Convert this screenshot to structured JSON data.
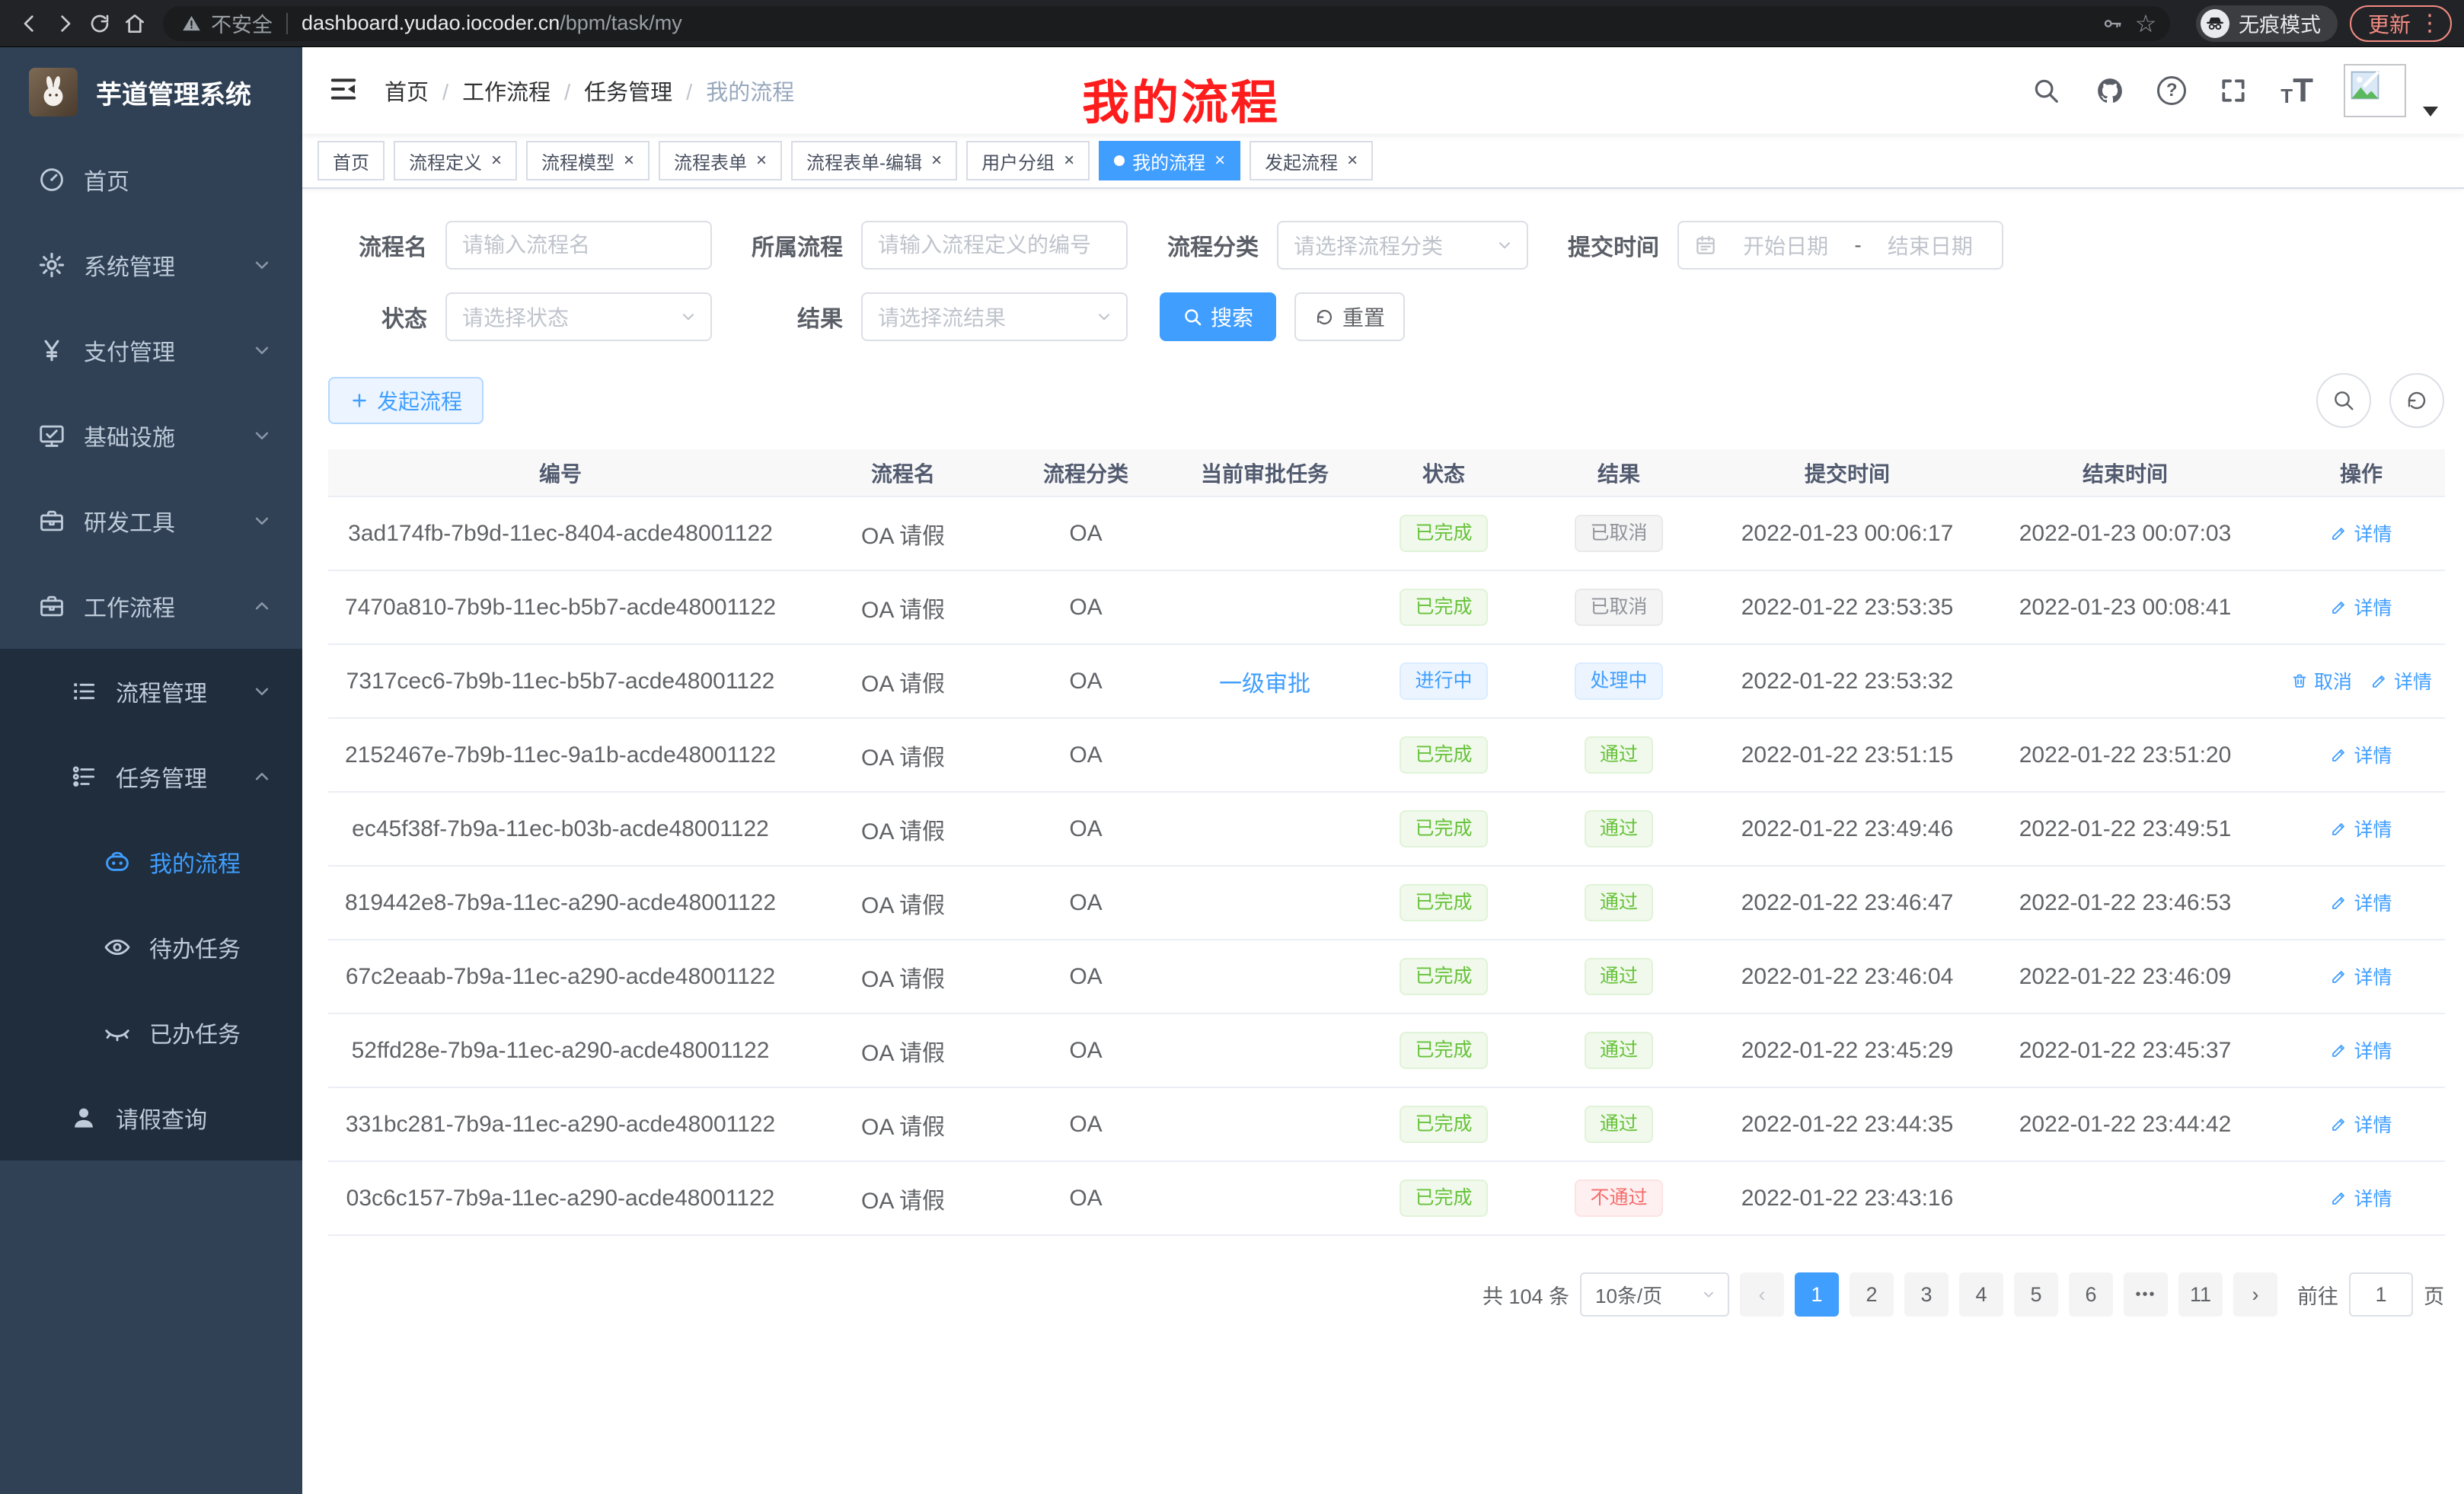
{
  "browser": {
    "security_warning": "不安全",
    "url_domain": "dashboard.yudao.iocoder.cn",
    "url_path": "/bpm/task/my",
    "incognito_label": "无痕模式",
    "update_label": "更新"
  },
  "sidebar": {
    "logo_title": "芋道管理系统",
    "items": [
      {
        "key": "home",
        "label": "首页",
        "icon": "gauge",
        "level": 1,
        "dark": false,
        "active": false,
        "chevron": ""
      },
      {
        "key": "system",
        "label": "系统管理",
        "icon": "gear",
        "level": 1,
        "dark": false,
        "active": false,
        "chevron": "down"
      },
      {
        "key": "payment",
        "label": "支付管理",
        "icon": "yen",
        "level": 1,
        "dark": false,
        "active": false,
        "chevron": "down"
      },
      {
        "key": "infra",
        "label": "基础设施",
        "icon": "monitor",
        "level": 1,
        "dark": false,
        "active": false,
        "chevron": "down"
      },
      {
        "key": "devtools",
        "label": "研发工具",
        "icon": "briefcase",
        "level": 1,
        "dark": false,
        "active": false,
        "chevron": "down"
      },
      {
        "key": "workflow",
        "label": "工作流程",
        "icon": "briefcase",
        "level": 1,
        "dark": false,
        "active": false,
        "chevron": "up"
      },
      {
        "key": "process-mgmt",
        "label": "流程管理",
        "icon": "tree-list",
        "level": 2,
        "dark": true,
        "active": false,
        "chevron": "down"
      },
      {
        "key": "task-mgmt",
        "label": "任务管理",
        "icon": "flow",
        "level": 2,
        "dark": true,
        "active": false,
        "chevron": "up"
      },
      {
        "key": "my-process",
        "label": "我的流程",
        "icon": "robot",
        "level": 3,
        "dark": true,
        "active": true,
        "chevron": ""
      },
      {
        "key": "todo-tasks",
        "label": "待办任务",
        "icon": "eye",
        "level": 3,
        "dark": true,
        "active": false,
        "chevron": ""
      },
      {
        "key": "done-tasks",
        "label": "已办任务",
        "icon": "eye-closed",
        "level": 3,
        "dark": true,
        "active": false,
        "chevron": ""
      },
      {
        "key": "leave-query",
        "label": "请假查询",
        "icon": "user",
        "level": 2,
        "dark": true,
        "active": false,
        "chevron": ""
      }
    ]
  },
  "header": {
    "breadcrumb": [
      "首页",
      "工作流程",
      "任务管理",
      "我的流程"
    ],
    "annotation": "我的流程"
  },
  "tabs": [
    {
      "label": "首页",
      "closable": false,
      "active": false
    },
    {
      "label": "流程定义",
      "closable": true,
      "active": false
    },
    {
      "label": "流程模型",
      "closable": true,
      "active": false
    },
    {
      "label": "流程表单",
      "closable": true,
      "active": false
    },
    {
      "label": "流程表单-编辑",
      "closable": true,
      "active": false
    },
    {
      "label": "用户分组",
      "closable": true,
      "active": false
    },
    {
      "label": "我的流程",
      "closable": true,
      "active": true
    },
    {
      "label": "发起流程",
      "closable": true,
      "active": false
    }
  ],
  "filters": {
    "process_name": {
      "label": "流程名",
      "placeholder": "请输入流程名"
    },
    "process_def": {
      "label": "所属流程",
      "placeholder": "请输入流程定义的编号"
    },
    "category": {
      "label": "流程分类",
      "placeholder": "请选择流程分类"
    },
    "submit_time": {
      "label": "提交时间",
      "start_placeholder": "开始日期",
      "separator": "-",
      "end_placeholder": "结束日期"
    },
    "status": {
      "label": "状态",
      "placeholder": "请选择状态"
    },
    "result": {
      "label": "结果",
      "placeholder": "请选择流结果"
    },
    "search_button": "搜索",
    "reset_button": "重置"
  },
  "toolbar": {
    "start_process_button": "发起流程"
  },
  "table": {
    "columns": [
      "编号",
      "流程名",
      "流程分类",
      "当前审批任务",
      "状态",
      "结果",
      "提交时间",
      "结束时间",
      "操作"
    ],
    "action_labels": {
      "detail": "详情",
      "cancel": "取消"
    },
    "rows": [
      {
        "id": "3ad174fb-7b9d-11ec-8404-acde48001122",
        "name": "OA 请假",
        "category": "OA",
        "task": "",
        "status": {
          "label": "已完成",
          "type": "success"
        },
        "result": {
          "label": "已取消",
          "type": "info"
        },
        "submit_time": "2022-01-23 00:06:17",
        "end_time": "2022-01-23 00:07:03",
        "actions": [
          "detail"
        ]
      },
      {
        "id": "7470a810-7b9b-11ec-b5b7-acde48001122",
        "name": "OA 请假",
        "category": "OA",
        "task": "",
        "status": {
          "label": "已完成",
          "type": "success"
        },
        "result": {
          "label": "已取消",
          "type": "info"
        },
        "submit_time": "2022-01-22 23:53:35",
        "end_time": "2022-01-23 00:08:41",
        "actions": [
          "detail"
        ]
      },
      {
        "id": "7317cec6-7b9b-11ec-b5b7-acde48001122",
        "name": "OA 请假",
        "category": "OA",
        "task": "一级审批",
        "status": {
          "label": "进行中",
          "type": "primary"
        },
        "result": {
          "label": "处理中",
          "type": "primary"
        },
        "submit_time": "2022-01-22 23:53:32",
        "end_time": "",
        "actions": [
          "cancel",
          "detail"
        ]
      },
      {
        "id": "2152467e-7b9b-11ec-9a1b-acde48001122",
        "name": "OA 请假",
        "category": "OA",
        "task": "",
        "status": {
          "label": "已完成",
          "type": "success"
        },
        "result": {
          "label": "通过",
          "type": "success"
        },
        "submit_time": "2022-01-22 23:51:15",
        "end_time": "2022-01-22 23:51:20",
        "actions": [
          "detail"
        ]
      },
      {
        "id": "ec45f38f-7b9a-11ec-b03b-acde48001122",
        "name": "OA 请假",
        "category": "OA",
        "task": "",
        "status": {
          "label": "已完成",
          "type": "success"
        },
        "result": {
          "label": "通过",
          "type": "success"
        },
        "submit_time": "2022-01-22 23:49:46",
        "end_time": "2022-01-22 23:49:51",
        "actions": [
          "detail"
        ]
      },
      {
        "id": "819442e8-7b9a-11ec-a290-acde48001122",
        "name": "OA 请假",
        "category": "OA",
        "task": "",
        "status": {
          "label": "已完成",
          "type": "success"
        },
        "result": {
          "label": "通过",
          "type": "success"
        },
        "submit_time": "2022-01-22 23:46:47",
        "end_time": "2022-01-22 23:46:53",
        "actions": [
          "detail"
        ]
      },
      {
        "id": "67c2eaab-7b9a-11ec-a290-acde48001122",
        "name": "OA 请假",
        "category": "OA",
        "task": "",
        "status": {
          "label": "已完成",
          "type": "success"
        },
        "result": {
          "label": "通过",
          "type": "success"
        },
        "submit_time": "2022-01-22 23:46:04",
        "end_time": "2022-01-22 23:46:09",
        "actions": [
          "detail"
        ]
      },
      {
        "id": "52ffd28e-7b9a-11ec-a290-acde48001122",
        "name": "OA 请假",
        "category": "OA",
        "task": "",
        "status": {
          "label": "已完成",
          "type": "success"
        },
        "result": {
          "label": "通过",
          "type": "success"
        },
        "submit_time": "2022-01-22 23:45:29",
        "end_time": "2022-01-22 23:45:37",
        "actions": [
          "detail"
        ]
      },
      {
        "id": "331bc281-7b9a-11ec-a290-acde48001122",
        "name": "OA 请假",
        "category": "OA",
        "task": "",
        "status": {
          "label": "已完成",
          "type": "success"
        },
        "result": {
          "label": "通过",
          "type": "success"
        },
        "submit_time": "2022-01-22 23:44:35",
        "end_time": "2022-01-22 23:44:42",
        "actions": [
          "detail"
        ]
      },
      {
        "id": "03c6c157-7b9a-11ec-a290-acde48001122",
        "name": "OA 请假",
        "category": "OA",
        "task": "",
        "status": {
          "label": "已完成",
          "type": "success"
        },
        "result": {
          "label": "不通过",
          "type": "danger"
        },
        "submit_time": "2022-01-22 23:43:16",
        "end_time": "",
        "actions": [
          "detail"
        ]
      }
    ]
  },
  "pagination": {
    "total_text": "共 104 条",
    "page_size": "10条/页",
    "pages": [
      "1",
      "2",
      "3",
      "4",
      "5",
      "6",
      "•••",
      "11"
    ],
    "active_page": "1",
    "jump_prefix": "前往",
    "jump_value": "1",
    "jump_suffix": "页"
  },
  "colors": {
    "accent": "#409eff",
    "success": "#67c23a",
    "info": "#909399",
    "danger": "#f56c6c",
    "sidebar_bg": "#304156",
    "submenu_bg": "#1f2d3d",
    "annotation_red": "#fe1c1c"
  }
}
